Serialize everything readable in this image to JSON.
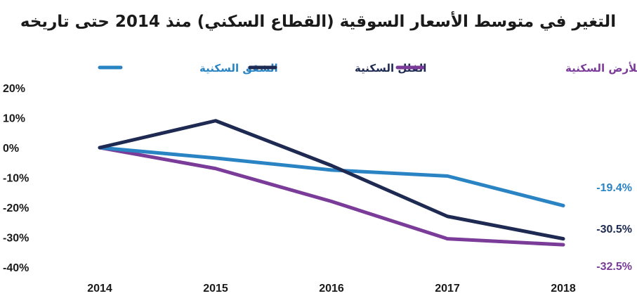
{
  "chart_data": {
    "type": "line",
    "title": "التغير في متوسط الأسعار السوقية (القطاع السكني) منذ 2014 حتى تاريخه",
    "x": [
      "2014",
      "2015",
      "2016",
      "2017",
      "2018"
    ],
    "y_ticks": [
      "20%",
      "10%",
      "0%",
      "-10%",
      "-20%",
      "-30%",
      "-40%"
    ],
    "ylim": [
      -40,
      20
    ],
    "grid": false,
    "legend_position": "top",
    "series": [
      {
        "name": "الشقق السكنية",
        "color": "#2a84c4",
        "values": [
          0,
          -3.5,
          -7.5,
          -9.5,
          -19.4
        ],
        "end_label": "-19.4%"
      },
      {
        "name": "الفلل السكنية",
        "color": "#1e2a52",
        "values": [
          0,
          9,
          -6,
          -23,
          -30.5
        ],
        "end_label": "-30.5%"
      },
      {
        "name": "المتر المربع للأرض السكنية",
        "color": "#7a3c98",
        "values": [
          0,
          -7,
          -18,
          -30.5,
          -32.5
        ],
        "end_label": "-32.5%"
      }
    ]
  }
}
